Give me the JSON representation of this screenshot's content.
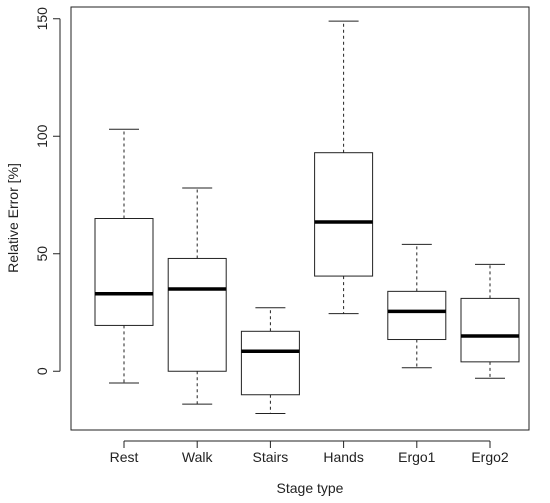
{
  "chart_data": {
    "type": "boxplot",
    "title": "",
    "xlabel": "Stage type",
    "ylabel": "Relative Error [%]",
    "ylim": [
      -25,
      155
    ],
    "yticks": [
      0,
      50,
      100,
      150
    ],
    "grid": false,
    "categories": [
      "Rest",
      "Walk",
      "Stairs",
      "Hands",
      "Ergo1",
      "Ergo2"
    ],
    "boxes": [
      {
        "label": "Rest",
        "whisker_low": -5,
        "q1": 19.5,
        "median": 33,
        "q3": 65,
        "whisker_high": 103
      },
      {
        "label": "Walk",
        "whisker_low": -14,
        "q1": 0,
        "median": 35,
        "q3": 48,
        "whisker_high": 78
      },
      {
        "label": "Stairs",
        "whisker_low": -18,
        "q1": -10,
        "median": 8.5,
        "q3": 17,
        "whisker_high": 27
      },
      {
        "label": "Hands",
        "whisker_low": 24.5,
        "q1": 40.5,
        "median": 63.5,
        "q3": 93,
        "whisker_high": 149
      },
      {
        "label": "Ergo1",
        "whisker_low": 1.5,
        "q1": 13.5,
        "median": 25.5,
        "q3": 34,
        "whisker_high": 54
      },
      {
        "label": "Ergo2",
        "whisker_low": -3,
        "q1": 4,
        "median": 15,
        "q3": 31,
        "whisker_high": 45.5
      }
    ],
    "colors": {
      "box_stroke": "#222222",
      "median": "#000000",
      "background": "#ffffff"
    }
  }
}
